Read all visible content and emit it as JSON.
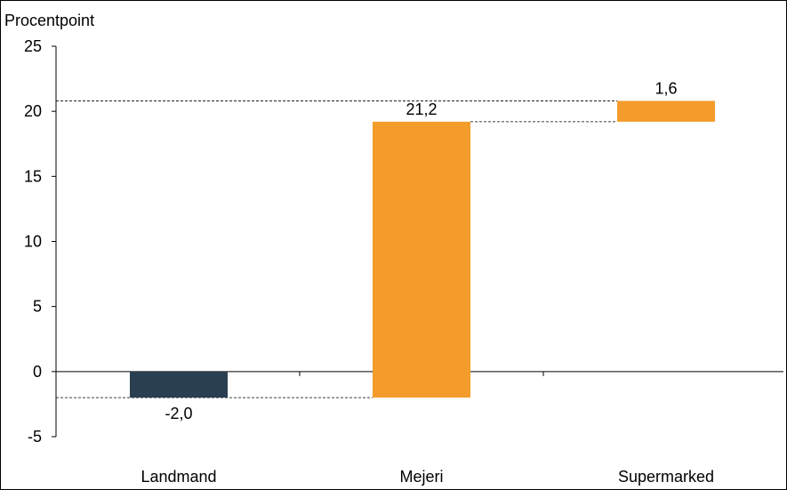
{
  "chart_data": {
    "type": "bar",
    "subtype": "waterfall",
    "ylabel": "Procentpoint",
    "ylim": [
      -5,
      25
    ],
    "yticks": [
      -5,
      0,
      5,
      10,
      15,
      20,
      25
    ],
    "grid": false,
    "categories": [
      "Landmand",
      "Mejeri",
      "Supermarked"
    ],
    "values": [
      -2.0,
      21.2,
      1.6
    ],
    "base": [
      0,
      -2.0,
      19.2
    ],
    "value_labels": [
      "-2,0",
      "21,2",
      "1,6"
    ],
    "colors": [
      "#2b3f52",
      "#f39c2b",
      "#f39c2b"
    ],
    "connector_style": "dashed"
  }
}
